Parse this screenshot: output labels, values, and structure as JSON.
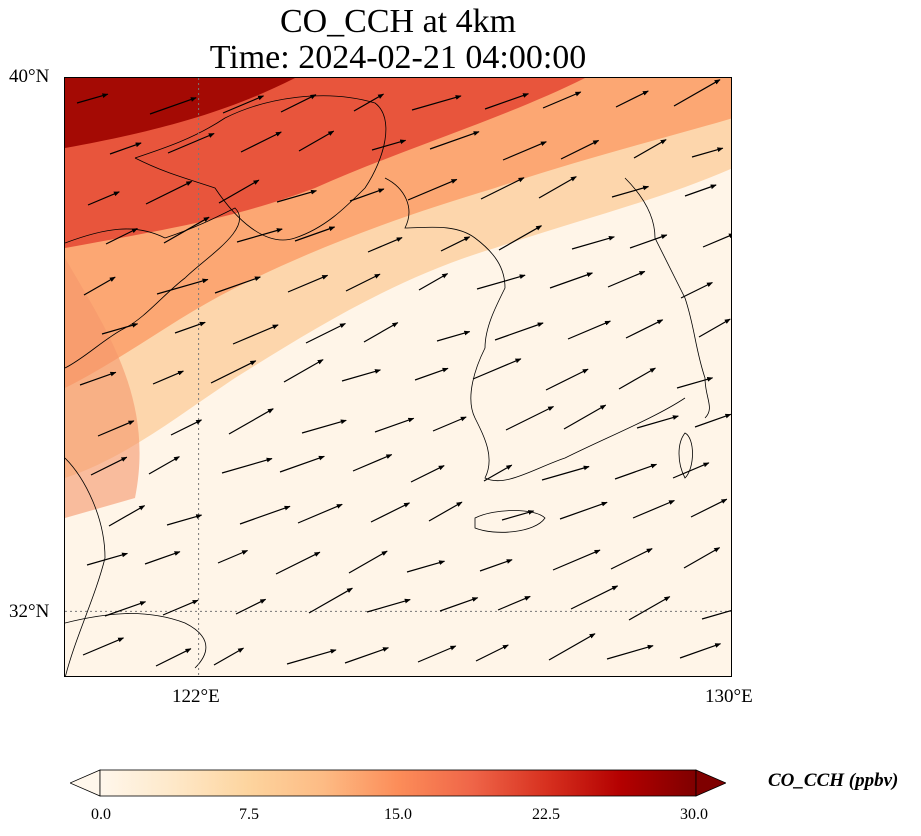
{
  "title": {
    "line1": "CO_CCH at 4km",
    "line2": "Time: 2024-02-21 04:00:00"
  },
  "map": {
    "lat_labels": [
      "40°N",
      "32°N"
    ],
    "lon_labels": [
      "122°E",
      "130°E"
    ],
    "extent": {
      "lon_min": 120,
      "lon_max": 130,
      "lat_min": 31,
      "lat_max": 40
    },
    "gridlines": {
      "lon": 122,
      "lat": 32,
      "style": "dotted"
    },
    "field_description": "CO concentration highest in the north-west (Bohai / Shandong area, ~25-30 ppbv), decreasing to ~0-5 ppbv in the south-east",
    "wind": "westerly to west-south-westerly vectors across domain"
  },
  "colorbar": {
    "label": "CO_CCH (ppbv)",
    "ticks": [
      "0.0",
      "7.5",
      "15.0",
      "22.5",
      "30.0"
    ],
    "min": 0,
    "max": 30,
    "colormap": "OrRd",
    "colors": [
      "#fff7ec",
      "#fee8c8",
      "#fdd49e",
      "#fdbb84",
      "#fc8d59",
      "#ef6548",
      "#d7301f",
      "#b30000",
      "#7f0000"
    ],
    "extend": "both"
  }
}
